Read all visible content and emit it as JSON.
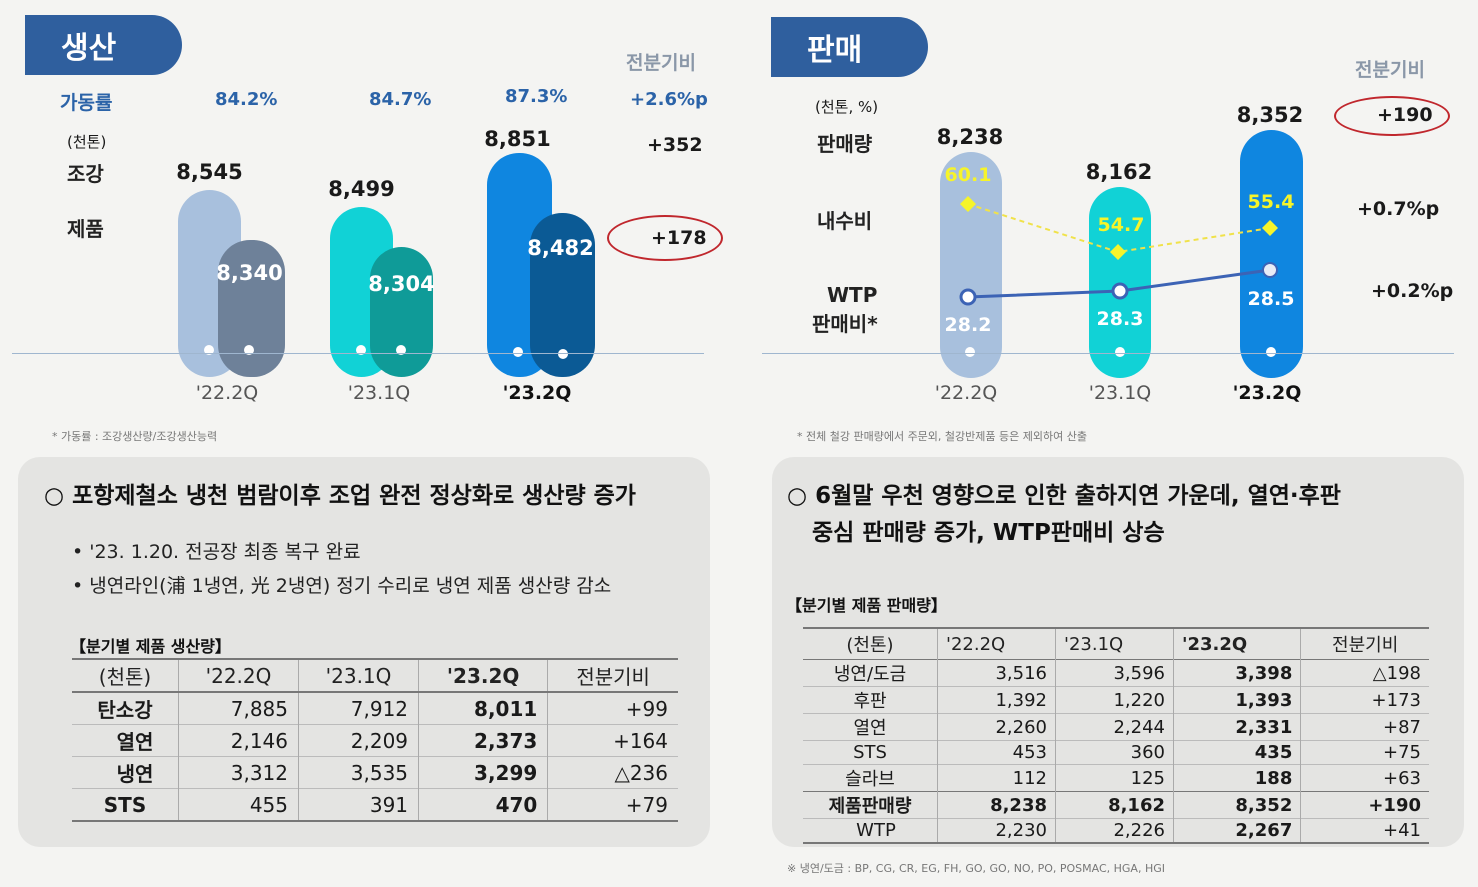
{
  "production": {
    "tab": "생산",
    "yoy_header": "전분기비",
    "utilization_label": "가동률",
    "utilization": [
      "84.2%",
      "84.7%",
      "87.3%"
    ],
    "utilization_change": "+2.6%p",
    "unit": "(천톤)",
    "steel_label": "조강",
    "product_label": "제품",
    "steel_values": [
      "8,545",
      "8,499",
      "8,851"
    ],
    "product_values": [
      "8,340",
      "8,304",
      "8,482"
    ],
    "steel_change": "+352",
    "product_change": "+178",
    "quarters": [
      "'22.2Q",
      "'23.1Q",
      "'23.2Q"
    ],
    "footnote": "* 가동률 : 조강생산량/조강생산능력",
    "headline": "○ 포항제철소 냉천 범람이후 조업 완전 정상화로 생산량 증가",
    "bullets": [
      "• '23. 1.20. 전공장 최종 복구 완료",
      "• 냉연라인(浦 1냉연, 光 2냉연) 정기 수리로 냉연 제품 생산량 감소"
    ],
    "table_title": "【분기별 제품 생산량】",
    "table_header": [
      "(천톤)",
      "'22.2Q",
      "'23.1Q",
      "'23.2Q",
      "전분기비"
    ],
    "table_rows": [
      [
        "탄소강",
        "7,885",
        "7,912",
        "8,011",
        "+99"
      ],
      [
        "열연",
        "2,146",
        "2,209",
        "2,373",
        "+164"
      ],
      [
        "냉연",
        "3,312",
        "3,535",
        "3,299",
        "△236"
      ],
      [
        "STS",
        "455",
        "391",
        "470",
        "+79"
      ]
    ]
  },
  "sales": {
    "tab": "판매",
    "yoy_header": "전분기비",
    "unit": "(천톤, %)",
    "volume_label": "판매량",
    "domestic_label": "내수비",
    "wtp_label_1": "WTP",
    "wtp_label_2": "판매비*",
    "volume_values": [
      "8,238",
      "8,162",
      "8,352"
    ],
    "domestic_values": [
      "60.1",
      "54.7",
      "55.4"
    ],
    "wtp_values": [
      "28.2",
      "28.3",
      "28.5"
    ],
    "volume_change": "+190",
    "domestic_change": "+0.7%p",
    "wtp_change": "+0.2%p",
    "quarters": [
      "'22.2Q",
      "'23.1Q",
      "'23.2Q"
    ],
    "footnote": "* 전체 철강 판매량에서 주문외, 철강반제품 등은 제외하여 산출",
    "headline_1": "○ 6월말 우천 영향으로 인한 출하지연 가운데, 열연·후판",
    "headline_2": "중심 판매량 증가, WTP판매비 상승",
    "table_title": "【분기별 제품 판매량】",
    "table_header": [
      "(천톤)",
      "'22.2Q",
      "'23.1Q",
      "'23.2Q",
      "전분기비"
    ],
    "table_rows": [
      [
        "냉연/도금",
        "3,516",
        "3,596",
        "3,398",
        "△198"
      ],
      [
        "후판",
        "1,392",
        "1,220",
        "1,393",
        "+173"
      ],
      [
        "열연",
        "2,260",
        "2,244",
        "2,331",
        "+87"
      ],
      [
        "STS",
        "453",
        "360",
        "435",
        "+75"
      ],
      [
        "슬라브",
        "112",
        "125",
        "188",
        "+63"
      ],
      [
        "제품판매량",
        "8,238",
        "8,162",
        "8,352",
        "+190"
      ],
      [
        "WTP",
        "2,230",
        "2,226",
        "2,267",
        "+41"
      ]
    ],
    "table_note": "※ 냉연/도금 : BP, CG, CR, EG, FH, GO, GO, NO, PO, POSMAC, HGA, HGI"
  },
  "colors": {
    "tab_blue": "#2f5f9e",
    "q1_light": "#a8c0dd",
    "q1_dark": "#6e8199",
    "q2_light": "#11d2d6",
    "q2_dark": "#0f9b98",
    "q3_light": "#0f86e0",
    "q3_dark": "#0b5a95",
    "domestic_yellow": "#f6f42a",
    "wtp_line": "#3c63b5",
    "highlight_red": "#c0272d"
  }
}
